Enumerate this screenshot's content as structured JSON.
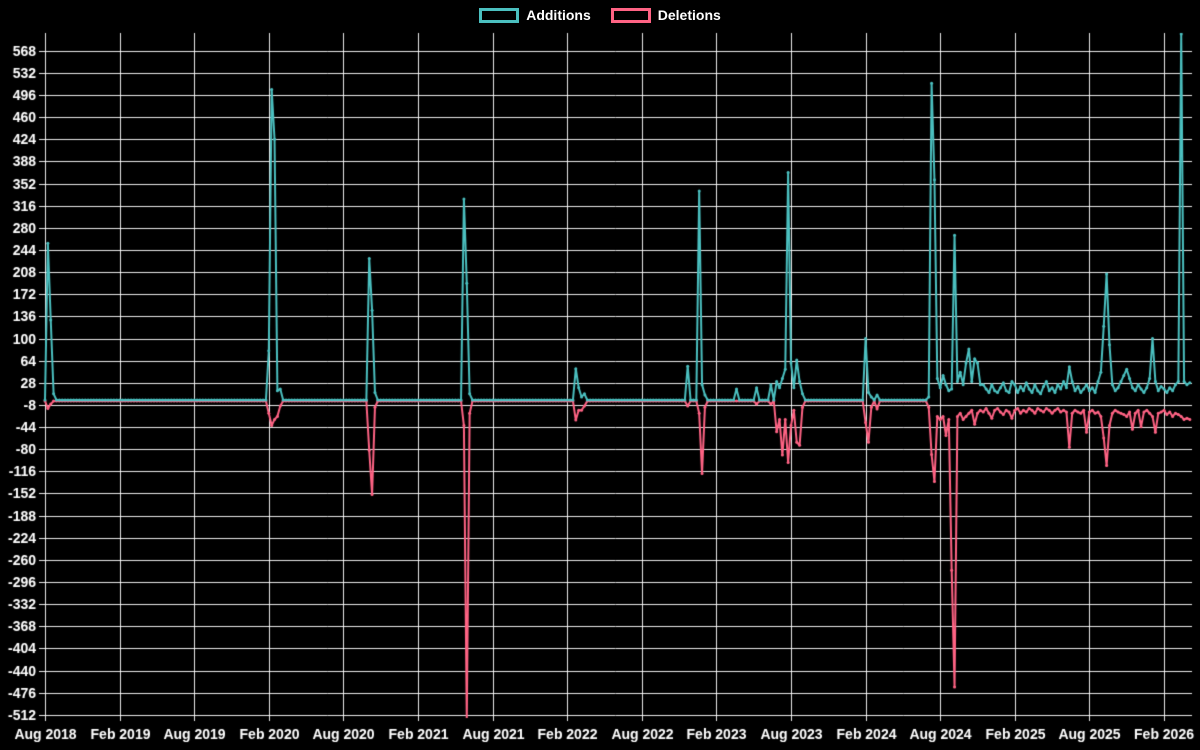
{
  "style": {
    "background": "#000000",
    "text_color": "#ffffff",
    "grid_color": "rgba(255,255,255,0.92)"
  },
  "legend": {
    "items": [
      {
        "label": "Additions",
        "color": "#4bc0c0"
      },
      {
        "label": "Deletions",
        "color": "#ff6384"
      }
    ]
  },
  "chart_data": {
    "type": "line",
    "title": "",
    "legend_position": "top-center",
    "grid": {
      "visible": true,
      "color": "rgba(255,255,255,0.92)"
    },
    "series_names": [
      "Additions",
      "Deletions"
    ],
    "colors": {
      "Additions": "#4bc0c0",
      "Deletions": "#ff6384"
    },
    "x_axis": {
      "unit": "week",
      "tick_labels": [
        "Aug 2018",
        "Feb 2019",
        "Aug 2019",
        "Feb 2020",
        "Aug 2020",
        "Feb 2021",
        "Aug 2021",
        "Feb 2022",
        "Aug 2022",
        "Feb 2023",
        "Aug 2023",
        "Feb 2024",
        "Aug 2024",
        "Feb 2025",
        "Aug 2025",
        "Feb 2026"
      ],
      "tick_weeks": [
        0,
        26,
        52,
        78,
        104,
        130,
        156,
        182,
        208,
        234,
        260,
        286,
        312,
        338,
        364,
        390
      ]
    },
    "y_axis": {
      "min": -512,
      "max": 568,
      "tick_step": 36
    },
    "total_weeks": 400,
    "points_sparse": {
      "format": "[week_index, additions, deletions]; all unlisted weeks are [0,0]",
      "points": [
        [
          1,
          255,
          -12
        ],
        [
          2,
          130,
          -5
        ],
        [
          3,
          10,
          0
        ],
        [
          78,
          80,
          -20
        ],
        [
          79,
          505,
          -40
        ],
        [
          80,
          424,
          -30
        ],
        [
          81,
          15,
          -25
        ],
        [
          82,
          18,
          -8
        ],
        [
          113,
          230,
          -80
        ],
        [
          114,
          146,
          -152
        ],
        [
          115,
          12,
          -10
        ],
        [
          146,
          327,
          -40
        ],
        [
          147,
          190,
          -518
        ],
        [
          148,
          10,
          -20
        ],
        [
          185,
          51,
          -31
        ],
        [
          186,
          20,
          -15
        ],
        [
          187,
          5,
          -15
        ],
        [
          188,
          10,
          -8
        ],
        [
          224,
          55,
          -8
        ],
        [
          228,
          340,
          -20
        ],
        [
          229,
          25,
          -118
        ],
        [
          230,
          8,
          -10
        ],
        [
          241,
          18,
          0
        ],
        [
          248,
          20,
          -5
        ],
        [
          253,
          25,
          -5
        ],
        [
          255,
          30,
          -50
        ],
        [
          256,
          20,
          -30
        ],
        [
          257,
          35,
          -88
        ],
        [
          258,
          50,
          -30
        ],
        [
          259,
          370,
          -100
        ],
        [
          260,
          60,
          -40
        ],
        [
          261,
          20,
          -15
        ],
        [
          262,
          65,
          -67
        ],
        [
          263,
          30,
          -72
        ],
        [
          264,
          10,
          -10
        ],
        [
          286,
          100,
          -35
        ],
        [
          287,
          12,
          -67
        ],
        [
          288,
          5,
          -10
        ],
        [
          290,
          8,
          -13
        ],
        [
          308,
          5,
          -10
        ],
        [
          309,
          515,
          -87
        ],
        [
          310,
          358,
          -131
        ],
        [
          311,
          35,
          -25
        ],
        [
          312,
          20,
          -30
        ],
        [
          313,
          40,
          -25
        ],
        [
          314,
          25,
          -56
        ],
        [
          315,
          15,
          -30
        ],
        [
          316,
          18,
          -275
        ],
        [
          317,
          268,
          -465
        ],
        [
          318,
          30,
          -25
        ],
        [
          319,
          45,
          -20
        ],
        [
          320,
          25,
          -30
        ],
        [
          321,
          60,
          -25
        ],
        [
          322,
          83,
          -20
        ],
        [
          323,
          30,
          -15
        ],
        [
          324,
          67,
          -38
        ],
        [
          325,
          60,
          -20
        ],
        [
          326,
          25,
          -15
        ],
        [
          327,
          25,
          -18
        ],
        [
          328,
          18,
          -12
        ],
        [
          329,
          12,
          -20
        ],
        [
          330,
          25,
          -28
        ],
        [
          331,
          15,
          -15
        ],
        [
          332,
          12,
          -12
        ],
        [
          333,
          20,
          -18
        ],
        [
          334,
          28,
          -22
        ],
        [
          335,
          15,
          -15
        ],
        [
          336,
          12,
          -18
        ],
        [
          337,
          30,
          -28
        ],
        [
          338,
          25,
          -15
        ],
        [
          339,
          12,
          -12
        ],
        [
          340,
          22,
          -20
        ],
        [
          341,
          15,
          -15
        ],
        [
          342,
          28,
          -18
        ],
        [
          343,
          18,
          -12
        ],
        [
          344,
          12,
          -15
        ],
        [
          345,
          25,
          -20
        ],
        [
          346,
          15,
          -12
        ],
        [
          347,
          10,
          -15
        ],
        [
          348,
          22,
          -18
        ],
        [
          349,
          30,
          -12
        ],
        [
          350,
          15,
          -15
        ],
        [
          351,
          20,
          -20
        ],
        [
          352,
          12,
          -15
        ],
        [
          353,
          25,
          -12
        ],
        [
          354,
          18,
          -18
        ],
        [
          355,
          30,
          -15
        ],
        [
          356,
          20,
          -18
        ],
        [
          357,
          54,
          -75
        ],
        [
          358,
          30,
          -20
        ],
        [
          359,
          15,
          -15
        ],
        [
          360,
          22,
          -18
        ],
        [
          361,
          12,
          -20
        ],
        [
          362,
          18,
          -15
        ],
        [
          363,
          25,
          -51
        ],
        [
          364,
          15,
          -18
        ],
        [
          365,
          20,
          -15
        ],
        [
          366,
          12,
          -20
        ],
        [
          367,
          30,
          -18
        ],
        [
          368,
          45,
          -25
        ],
        [
          369,
          120,
          -60
        ],
        [
          370,
          205,
          -105
        ],
        [
          371,
          90,
          -40
        ],
        [
          372,
          25,
          -20
        ],
        [
          373,
          15,
          -15
        ],
        [
          374,
          20,
          -18
        ],
        [
          375,
          30,
          -20
        ],
        [
          376,
          40,
          -22
        ],
        [
          377,
          50,
          -25
        ],
        [
          378,
          35,
          -18
        ],
        [
          379,
          20,
          -46
        ],
        [
          380,
          15,
          -20
        ],
        [
          381,
          25,
          -15
        ],
        [
          382,
          18,
          -42
        ],
        [
          383,
          12,
          -18
        ],
        [
          384,
          20,
          -15
        ],
        [
          385,
          35,
          -20
        ],
        [
          386,
          100,
          -25
        ],
        [
          387,
          30,
          -51
        ],
        [
          388,
          15,
          -20
        ],
        [
          389,
          22,
          -18
        ],
        [
          390,
          18,
          -15
        ],
        [
          391,
          12,
          -22
        ],
        [
          392,
          20,
          -18
        ],
        [
          393,
          15,
          -25
        ],
        [
          394,
          25,
          -20
        ],
        [
          395,
          30,
          -22
        ],
        [
          396,
          595,
          -25
        ],
        [
          397,
          30,
          -30
        ],
        [
          398,
          25,
          -28
        ],
        [
          399,
          28,
          -30
        ]
      ]
    }
  }
}
